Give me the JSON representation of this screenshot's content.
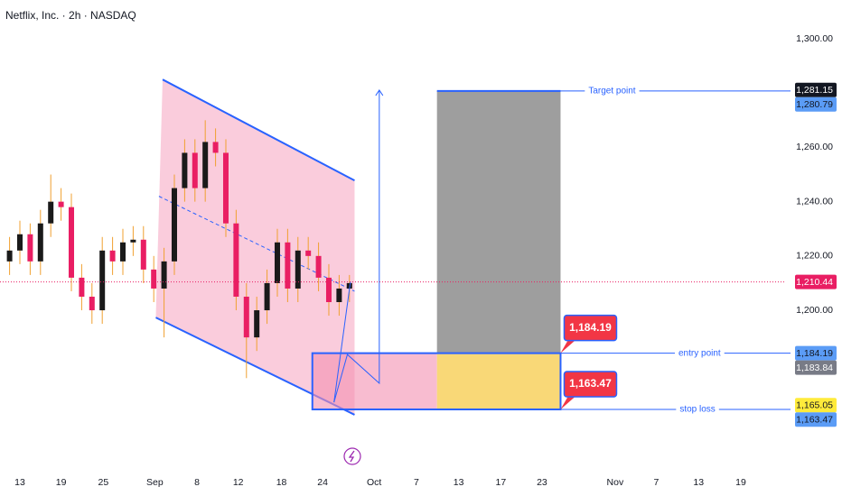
{
  "chart_data": {
    "type": "candlestick",
    "title": "Netflix, Inc. · 2h · NASDAQ",
    "up_color": "#1a1a1a",
    "down_color": "#e91e63",
    "wick_color": "#f0a030",
    "x": [
      -1,
      0,
      1,
      2,
      3,
      4,
      5,
      6,
      7,
      8,
      9,
      10,
      11,
      12,
      13,
      14,
      15,
      16,
      17,
      18,
      19,
      20,
      21,
      22,
      23,
      24,
      25,
      26,
      27,
      28,
      29,
      30,
      31,
      32
    ],
    "open": [
      1218,
      1222,
      1228,
      1218,
      1232,
      1240,
      1238,
      1212,
      1205,
      1200,
      1222,
      1218,
      1225,
      1226,
      1215,
      1208,
      1218,
      1245,
      1258,
      1245,
      1262,
      1258,
      1232,
      1205,
      1190,
      1200,
      1210,
      1225,
      1208,
      1222,
      1220,
      1212,
      1203,
      1208
    ],
    "high": [
      1227,
      1233,
      1232,
      1237,
      1250,
      1245,
      1243,
      1217,
      1210,
      1227,
      1227,
      1230,
      1231,
      1231,
      1220,
      1223,
      1250,
      1263,
      1263,
      1270,
      1267,
      1263,
      1237,
      1210,
      1205,
      1215,
      1230,
      1230,
      1227,
      1227,
      1225,
      1217,
      1213,
      1213
    ],
    "low": [
      1213,
      1217,
      1213,
      1213,
      1227,
      1233,
      1207,
      1200,
      1195,
      1195,
      1213,
      1213,
      1220,
      1210,
      1203,
      1190,
      1213,
      1240,
      1240,
      1240,
      1253,
      1227,
      1200,
      1175,
      1185,
      1195,
      1205,
      1203,
      1203,
      1215,
      1207,
      1198,
      1198,
      1203
    ],
    "close": [
      1222,
      1228,
      1218,
      1232,
      1240,
      1238,
      1212,
      1205,
      1200,
      1222,
      1218,
      1225,
      1226,
      1215,
      1208,
      1218,
      1245,
      1258,
      1245,
      1262,
      1258,
      1232,
      1205,
      1190,
      1200,
      1210,
      1225,
      1208,
      1222,
      1220,
      1212,
      1203,
      1208,
      1210
    ],
    "xlim": [
      -1.93,
      74.39
    ],
    "ylim": [
      1143.2,
      1314.3
    ],
    "xticks": [
      {
        "value": 0,
        "label": "13"
      },
      {
        "value": 4,
        "label": "19"
      },
      {
        "value": 8.1,
        "label": "25"
      },
      {
        "value": 13.1,
        "label": "Sep"
      },
      {
        "value": 17.2,
        "label": "8"
      },
      {
        "value": 21.2,
        "label": "12"
      },
      {
        "value": 25.4,
        "label": "18"
      },
      {
        "value": 29.4,
        "label": "24"
      },
      {
        "value": 34.4,
        "label": "Oct"
      },
      {
        "value": 38.5,
        "label": "7"
      },
      {
        "value": 42.6,
        "label": "13"
      },
      {
        "value": 46.7,
        "label": "17"
      },
      {
        "value": 50.7,
        "label": "23"
      },
      {
        "value": 57.8,
        "label": "Nov"
      },
      {
        "value": 61.8,
        "label": "7"
      },
      {
        "value": 65.9,
        "label": "13"
      },
      {
        "value": 70,
        "label": "19"
      }
    ],
    "yticks": [
      {
        "value": 1200,
        "label": "1,200.00"
      },
      {
        "value": 1220,
        "label": "1,220.00"
      },
      {
        "value": 1240,
        "label": "1,240.00"
      },
      {
        "value": 1260,
        "label": "1,260.00"
      },
      {
        "value": 1300,
        "label": "1,300.00"
      }
    ],
    "channel": {
      "color": "#2962ff",
      "fill": "#f8bbd0",
      "upper_x": [
        13.86,
        32.5
      ],
      "upper_y": [
        1285.0,
        1247.8
      ],
      "lower_x": [
        13.2,
        32.5
      ],
      "lower_y": [
        1197.3,
        1161.5
      ],
      "mid_x": [
        13.5,
        32.5
      ],
      "mid_y": [
        1242,
        1207
      ]
    },
    "position": {
      "x_start": 28.4,
      "x_split": 40.5,
      "x_end": 52.5,
      "entry": 1184.19,
      "stop": 1163.47,
      "target": 1280.79
    },
    "projection": {
      "x": [
        30.5,
        31.8,
        34.9,
        34.9
      ],
      "y": [
        1166.1,
        1183.7,
        1173.1,
        1281.1
      ]
    },
    "projection_link": {
      "x": [
        30.5,
        32.1
      ],
      "y": [
        1166.1,
        1210.6
      ]
    },
    "current_price": 1210.44,
    "annotations": [
      {
        "text": "Target point",
        "value": 1280.79,
        "x": 57.5
      },
      {
        "text": "entry point",
        "value": 1184.19,
        "x": 66
      },
      {
        "text": "stop loss",
        "value": 1163.47,
        "x": 65.8
      }
    ],
    "callouts": [
      {
        "label": "1,184.19",
        "value": 1184.19
      },
      {
        "label": "1,163.47",
        "value": 1163.47
      }
    ],
    "price_badges": [
      {
        "value": 1281.15,
        "label": "1,281.15",
        "color": "#131722",
        "text_color": "#ffffff"
      },
      {
        "value": 1280.79,
        "label": "1,280.79",
        "color": "#5b9cf6",
        "text_color": "#131722"
      },
      {
        "value": 1210.44,
        "label": "1,210.44",
        "color": "#e91e63",
        "text_color": "#ffffff"
      },
      {
        "value": 1184.19,
        "label": "1,184.19",
        "color": "#5b9cf6",
        "text_color": "#131722"
      },
      {
        "value": 1183.84,
        "label": "1,183.84",
        "color": "#787b86",
        "text_color": "#ffffff"
      },
      {
        "value": 1165.05,
        "label": "1,165.05",
        "color": "#ffeb3b",
        "text_color": "#131722"
      },
      {
        "value": 1163.47,
        "label": "1,163.47",
        "color": "#5b9cf6",
        "text_color": "#131722"
      }
    ]
  }
}
